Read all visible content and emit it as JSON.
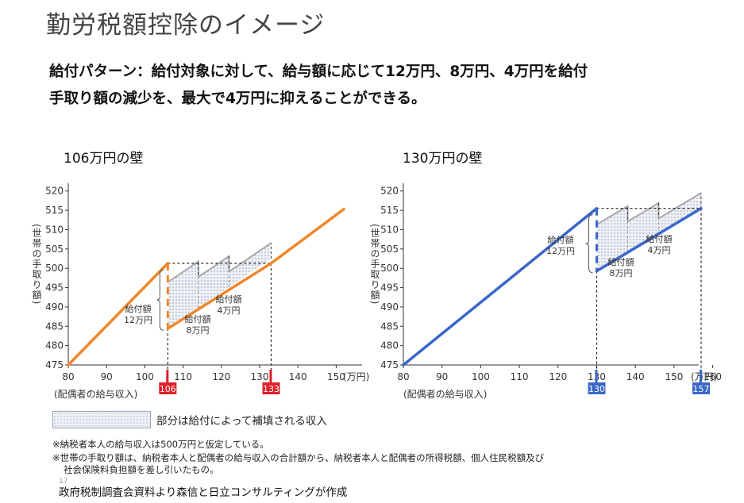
{
  "title": "勤労税額控除のイメージ",
  "subtitle_line1": "給付パターン：給付対象に対して、給与額に応じて12万円、8万円、4万円を給付",
  "subtitle_line2": "手取り額の減少を、最大で4万円に抑えることができる。",
  "legend_text": "部分は給付によって補填される収入",
  "notes": [
    "※納税者本人の給与収入は500万円と仮定している。",
    "※世帯の手取り額は、納税者本人と配偶者の給与収入の合計額から、納税者本人と配偶者の所得税額、個人住民税額及び",
    "社会保険料負担額を差し引いたもの。"
  ],
  "page_number": "17",
  "source": "政府税制調査会資料より森信と日立コンサルティングが作成",
  "chart_data": [
    {
      "type": "line",
      "title": "106万円の壁",
      "xlabel": "(配偶者の給与収入)",
      "x_unit": "(万円)",
      "ylabel": "(世帯の手取り額)",
      "xlim": [
        80,
        152
      ],
      "ylim": [
        475,
        522
      ],
      "x_ticks": [
        80,
        90,
        100,
        110,
        120,
        130,
        140,
        150
      ],
      "y_ticks": [
        475,
        480,
        485,
        490,
        495,
        500,
        505,
        510,
        515,
        520
      ],
      "color": "#f0862a",
      "base_line": [
        [
          80,
          475
        ],
        [
          106,
          501.3
        ],
        [
          106,
          484.4
        ],
        [
          133,
          501.3
        ],
        [
          152,
          515.3
        ]
      ],
      "wall_x": 106,
      "wall_before": 501.3,
      "wall_after": 484.4,
      "breakeven_x": 133,
      "benefit_steps": [
        {
          "x0": 106,
          "x1": 114,
          "amount": 12,
          "label": "給付額\n12万円"
        },
        {
          "x0": 114,
          "x1": 122,
          "amount": 8,
          "label": "給付額\n8万円"
        },
        {
          "x0": 122,
          "x1": 133,
          "amount": 4,
          "label": "給付額\n4万円"
        }
      ],
      "markers": [
        {
          "x": 106,
          "label": "106"
        },
        {
          "x": 133,
          "label": "133"
        }
      ],
      "marker_color": "#e0202a"
    },
    {
      "type": "line",
      "title": "130万円の壁",
      "xlabel": "(配偶者の給与収入)",
      "x_unit": "(万円)",
      "ylabel": "(世帯の手取り額)",
      "xlim": [
        80,
        162
      ],
      "ylim": [
        475,
        522
      ],
      "x_ticks": [
        80,
        90,
        100,
        110,
        120,
        130,
        140,
        150,
        160
      ],
      "y_ticks": [
        475,
        480,
        485,
        490,
        495,
        500,
        505,
        510,
        515,
        520
      ],
      "color": "#3a67c8",
      "base_line": [
        [
          80,
          475
        ],
        [
          130,
          515.5
        ],
        [
          130,
          499.3
        ],
        [
          157,
          515.5
        ]
      ],
      "wall_x": 130,
      "wall_before": 515.5,
      "wall_after": 499.3,
      "breakeven_x": 157,
      "benefit_steps": [
        {
          "x0": 130,
          "x1": 138,
          "amount": 12,
          "label": "給付額\n12万円"
        },
        {
          "x0": 138,
          "x1": 146,
          "amount": 8,
          "label": "給付額\n8万円"
        },
        {
          "x0": 146,
          "x1": 157,
          "amount": 4,
          "label": "給付額\n4万円"
        }
      ],
      "markers": [
        {
          "x": 130,
          "label": "130"
        },
        {
          "x": 157,
          "label": "157"
        }
      ],
      "marker_color": "#3a67c8"
    }
  ]
}
